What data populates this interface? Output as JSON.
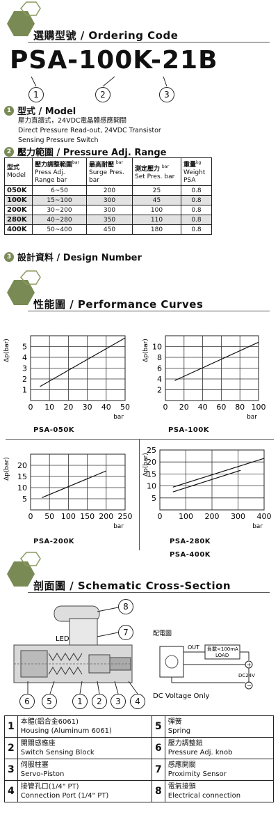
{
  "ordering": {
    "title": "選購型號 / Ordering Code",
    "model_code": "PSA-100K-21B",
    "markers": [
      "1",
      "2",
      "3"
    ]
  },
  "model_section": {
    "num": "1",
    "heading": "型式 / Model",
    "lines": [
      "壓力直讀式，24VDC電晶體感應開關",
      "Direct Pressure Read-out, 24VDC Transistor",
      "Sensing Pressure Switch"
    ]
  },
  "range_section": {
    "num": "2",
    "heading": "壓力範圍 / Pressure Adj. Range",
    "headers": [
      {
        "zh": "型式",
        "en": "Model",
        "unit": ""
      },
      {
        "zh": "壓力調整範圍",
        "en": "Press Adj. Range bar",
        "unit": "bar"
      },
      {
        "zh": "最高耐壓",
        "en": "Surge Pres. bar",
        "unit": "bar"
      },
      {
        "zh": "測定壓力",
        "en": "Set Pres. bar",
        "unit": "bar"
      },
      {
        "zh": "重量",
        "en": "Weight PSA",
        "unit": "kg"
      }
    ],
    "rows": [
      {
        "model": "050K",
        "range": "6~50",
        "surge": "200",
        "set": "25",
        "weight": "0.8"
      },
      {
        "model": "100K",
        "range": "15~100",
        "surge": "300",
        "set": "45",
        "weight": "0.8"
      },
      {
        "model": "200K",
        "range": "30~200",
        "surge": "300",
        "set": "100",
        "weight": "0.8"
      },
      {
        "model": "280K",
        "range": "40~280",
        "surge": "350",
        "set": "110",
        "weight": "0.8"
      },
      {
        "model": "400K",
        "range": "50~400",
        "surge": "450",
        "set": "180",
        "weight": "0.8"
      }
    ]
  },
  "design_section": {
    "num": "3",
    "heading": "設計資料 / Design Number"
  },
  "performance": {
    "title": "性能圖 / Performance Curves"
  },
  "chart_data": [
    {
      "type": "line",
      "name": "PSA-050K",
      "xlabel": "bar",
      "ylabel": "Δp(bar)",
      "xlim": [
        0,
        50
      ],
      "ylim": [
        0,
        6
      ],
      "xticks": [
        0,
        10,
        20,
        30,
        40,
        50
      ],
      "yticks": [
        1,
        2,
        3,
        4,
        5
      ],
      "series": [
        {
          "x": [
            5,
            50
          ],
          "y": [
            1.3,
            5.8
          ]
        }
      ]
    },
    {
      "type": "line",
      "name": "PSA-100K",
      "xlabel": "bar",
      "ylabel": "Δp(bar)",
      "xlim": [
        0,
        100
      ],
      "ylim": [
        0,
        12
      ],
      "xticks": [
        0,
        20,
        40,
        60,
        80,
        100
      ],
      "yticks": [
        2,
        4,
        6,
        8,
        10
      ],
      "series": [
        {
          "x": [
            10,
            100
          ],
          "y": [
            3.7,
            10.8
          ]
        }
      ]
    },
    {
      "type": "line",
      "name": "PSA-200K",
      "xlabel": "bar",
      "ylabel": "Δp(bar)",
      "xlim": [
        0,
        250
      ],
      "ylim": [
        0,
        25
      ],
      "xticks": [
        0,
        50,
        100,
        150,
        200,
        250
      ],
      "yticks": [
        5,
        10,
        15,
        20
      ],
      "series": [
        {
          "x": [
            30,
            200
          ],
          "y": [
            5.5,
            17.5
          ]
        }
      ]
    },
    {
      "type": "line",
      "name": "PSA-280K / PSA-400K",
      "xlabel": "bar",
      "ylabel": "Δp(bar)",
      "xlim": [
        0,
        400
      ],
      "ylim": [
        0,
        25
      ],
      "xticks": [
        0,
        100,
        200,
        300,
        400
      ],
      "yticks": [
        5,
        10,
        15,
        20,
        25
      ],
      "series": [
        {
          "x": [
            50,
            400
          ],
          "y": [
            9.5,
            21.5
          ]
        },
        {
          "x": [
            50,
            310
          ],
          "y": [
            7.5,
            16.5
          ]
        }
      ]
    }
  ],
  "chart_labels": [
    "PSA-050K",
    "PSA-100K",
    "PSA-200K",
    "PSA-280K",
    "PSA-400K"
  ],
  "schematic": {
    "title": "剖面圖 / Schematic Cross-Section",
    "led_label": "LED",
    "wiring_title": "配電圖",
    "out_label": "OUT",
    "load_label_1": "負載<100mA",
    "load_label_2": "LOAD",
    "dc_label": "DC24V",
    "plus": "+",
    "minus": "−",
    "voltage_note": "DC Voltage Only",
    "callouts": [
      "6",
      "5",
      "1",
      "2",
      "3",
      "4",
      "7",
      "8"
    ]
  },
  "parts": [
    {
      "n": "1",
      "zh": "本體(鋁合金6061)",
      "en": "Housing (Aluminum 6061)"
    },
    {
      "n": "5",
      "zh": "彈簧",
      "en": "Spring"
    },
    {
      "n": "2",
      "zh": "開關感應座",
      "en": "Switch Sensing Block"
    },
    {
      "n": "6",
      "zh": "壓力調整鈕",
      "en": "Pressure Adj. knob"
    },
    {
      "n": "3",
      "zh": "伺服柱塞",
      "en": "Servo-Piston"
    },
    {
      "n": "7",
      "zh": "感應開關",
      "en": "Proximity Sensor"
    },
    {
      "n": "4",
      "zh": "接管孔口(1/4\" PT)",
      "en": "Connection Port (1/4\" PT)"
    },
    {
      "n": "8",
      "zh": "電氣接頭",
      "en": "Electrical connection"
    }
  ],
  "colors": {
    "accent": "#7a8a55",
    "hex_outline": "#8a9a60"
  }
}
